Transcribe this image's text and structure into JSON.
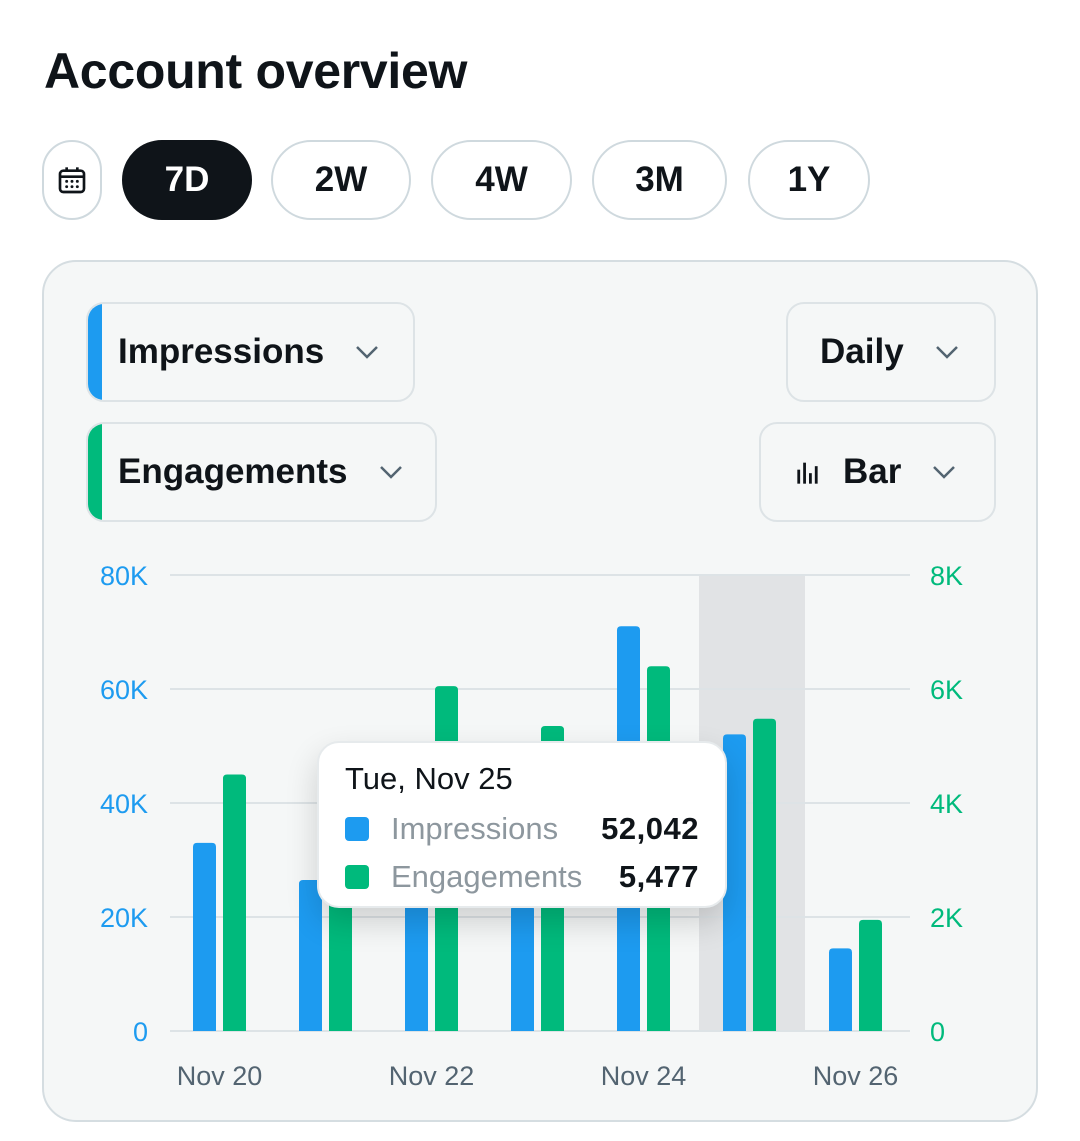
{
  "title": "Account overview",
  "range_selector": {
    "calendar_icon": "calendar-icon",
    "options": [
      "7D",
      "2W",
      "4W",
      "3M",
      "1Y"
    ],
    "selected": "7D"
  },
  "controls": {
    "metric_1": {
      "label": "Impressions",
      "color": "#1d9bf0"
    },
    "metric_2": {
      "label": "Engagements",
      "color": "#00ba7c"
    },
    "interval": {
      "label": "Daily"
    },
    "chart_type": {
      "label": "Bar",
      "icon": "bar-chart-icon"
    }
  },
  "colors": {
    "impressions": "#1d9bf0",
    "engagements": "#00ba7c",
    "highlight_band": "#e1e3e5"
  },
  "chart_data": {
    "type": "bar",
    "categories": [
      "Nov 20",
      "Nov 21",
      "Nov 22",
      "Nov 23",
      "Nov 24",
      "Nov 25",
      "Nov 26"
    ],
    "x_tick_labels": [
      "Nov 20",
      "Nov 22",
      "Nov 24",
      "Nov 26"
    ],
    "series": [
      {
        "name": "Impressions",
        "axis": "left",
        "values": [
          33000,
          26500,
          27000,
          22000,
          71000,
          52042,
          14500
        ]
      },
      {
        "name": "Engagements",
        "axis": "right",
        "values": [
          4500,
          3200,
          6050,
          5350,
          6400,
          5477,
          1950
        ]
      }
    ],
    "y_left": {
      "ticks": [
        "0",
        "20K",
        "40K",
        "60K",
        "80K"
      ],
      "ylim": [
        0,
        80000
      ]
    },
    "y_right": {
      "ticks": [
        "0",
        "2K",
        "4K",
        "6K",
        "8K"
      ],
      "ylim": [
        0,
        8000
      ]
    },
    "grid": true,
    "highlighted_category": "Nov 25"
  },
  "tooltip": {
    "date": "Tue, Nov 25",
    "rows": [
      {
        "label": "Impressions",
        "value": "52,042"
      },
      {
        "label": "Engagements",
        "value": "5,477"
      }
    ]
  }
}
